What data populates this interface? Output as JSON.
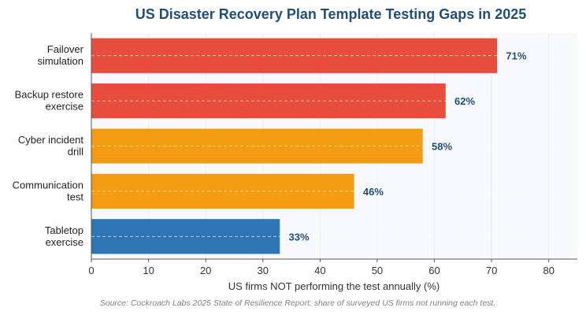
{
  "chart_data": {
    "type": "bar",
    "orientation": "horizontal",
    "title": "US Disaster Recovery Plan Template Testing Gaps in 2025",
    "xlabel": "US firms NOT performing the test annually (%)",
    "ylabel": "",
    "xlim": [
      0,
      85
    ],
    "xticks": [
      0,
      10,
      20,
      30,
      40,
      50,
      60,
      70,
      80
    ],
    "categories": [
      [
        "Failover",
        "simulation"
      ],
      [
        "Backup restore",
        "exercise"
      ],
      [
        "Cyber incident",
        "drill"
      ],
      [
        "Communication",
        "test"
      ],
      [
        "Tabletop",
        "exercise"
      ]
    ],
    "values": [
      71,
      62,
      58,
      46,
      33
    ],
    "value_labels": [
      "71%",
      "62%",
      "58%",
      "46%",
      "33%"
    ],
    "bar_colors": [
      "#e74c3c",
      "#e74c3c",
      "#f39c12",
      "#f39c12",
      "#2e75b6"
    ],
    "grid": true,
    "legend": "none",
    "source": "Source: Cockroach Labs 2025 State of Resilience Report; share of surveyed US firms not running each test."
  }
}
